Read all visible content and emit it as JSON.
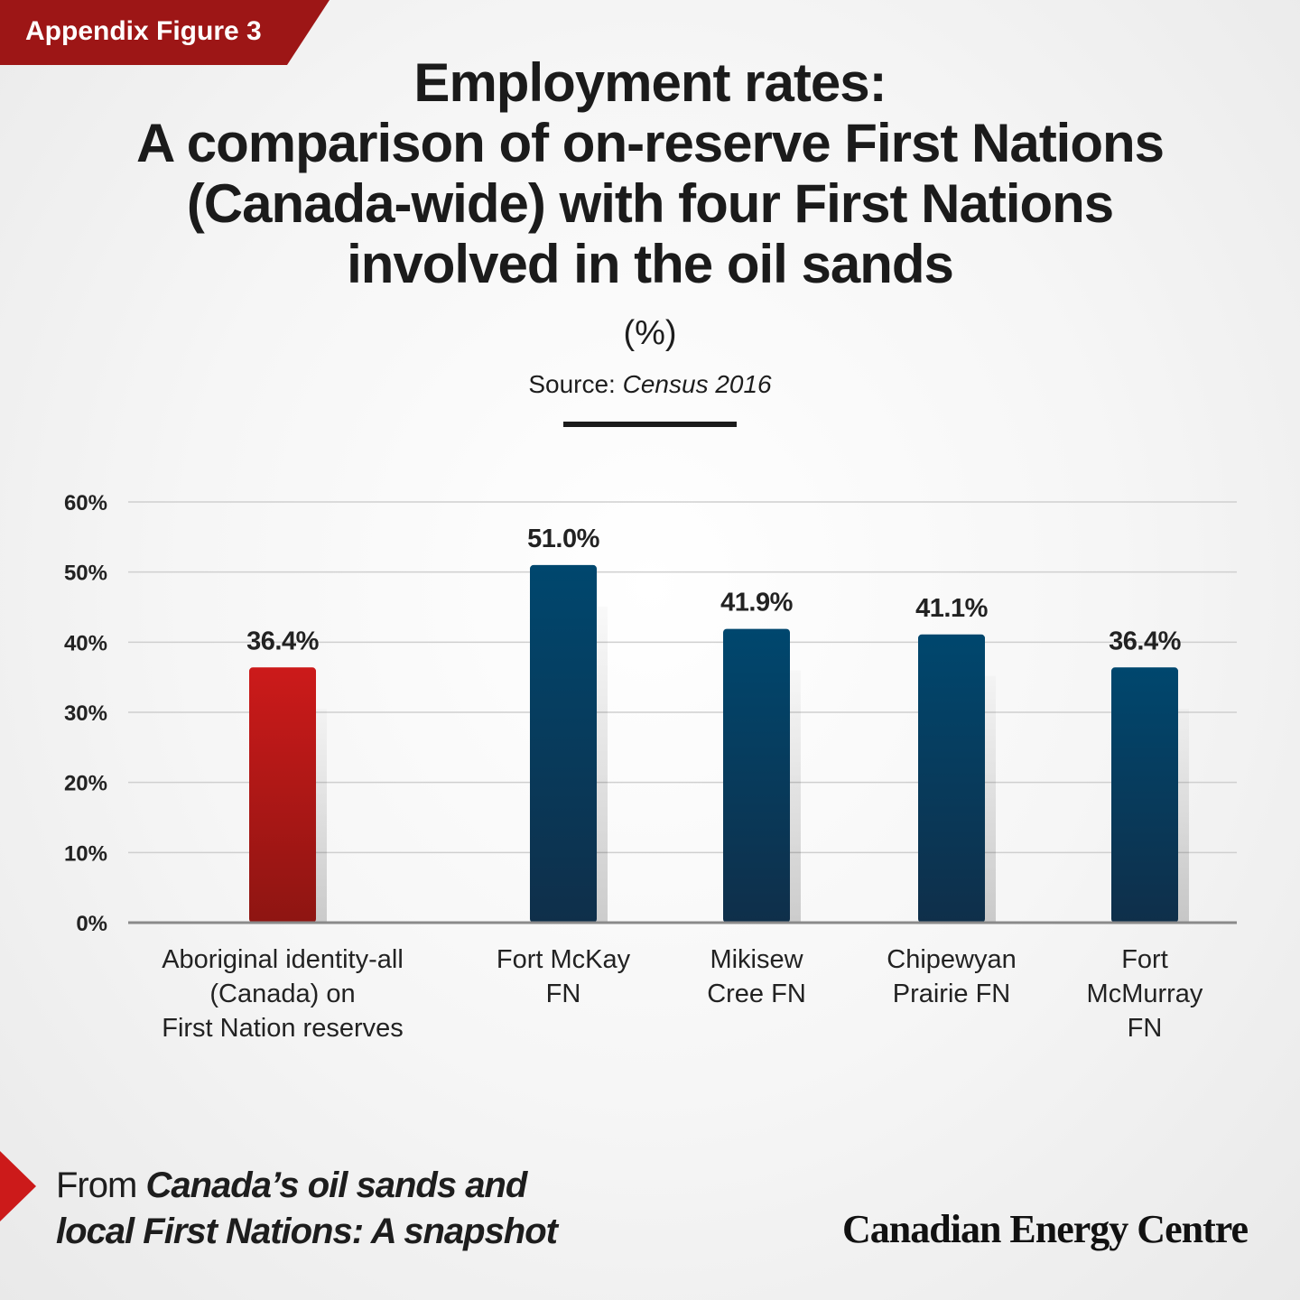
{
  "badge": "Appendix Figure 3",
  "footer": {
    "from": "From",
    "publication_line1": "Canada’s oil sands and",
    "publication_line2": "local First Nations: A snapshot",
    "logo": "Canadian Energy Centre"
  },
  "chart_data": {
    "type": "bar",
    "title_lines": [
      "Employment rates:",
      "A comparison of on-reserve First Nations",
      "(Canada-wide) with four First Nations",
      "involved in the oil sands"
    ],
    "subtitle": "(%)",
    "source_label": "Source:",
    "source_value": "Census 2016",
    "categories": [
      [
        "Aboriginal identity-all",
        "(Canada) on",
        "First Nation reserves"
      ],
      [
        "Fort McKay",
        "FN"
      ],
      [
        "Mikisew",
        "Cree FN"
      ],
      [
        "Chipewyan",
        "Prairie FN"
      ],
      [
        "Fort",
        "McMurray",
        "FN"
      ]
    ],
    "values": [
      36.4,
      51.0,
      41.9,
      41.1,
      36.4
    ],
    "data_labels": [
      "36.4%",
      "51.0%",
      "41.9%",
      "41.1%",
      "36.4%"
    ],
    "bar_colors": [
      "#c8171a",
      "#00446a",
      "#00446a",
      "#00446a",
      "#00446a"
    ],
    "ylim": [
      0,
      60
    ],
    "yticks": [
      "0%",
      "10%",
      "20%",
      "30%",
      "40%",
      "50%",
      "60%"
    ],
    "grid": true,
    "legend": "none"
  }
}
